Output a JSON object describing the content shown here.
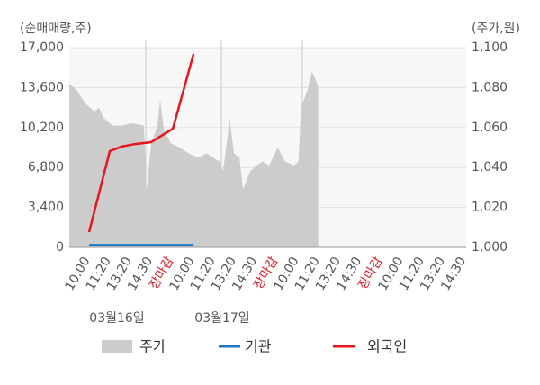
{
  "chart_data": {
    "type": "line",
    "y_axis_label": "(순매매량,주)",
    "y2_axis_label": "(주가,원)",
    "categories": [
      "10:00",
      "11:20",
      "13:20",
      "14:30",
      "장마감",
      "10:00",
      "11:20",
      "13:20",
      "14:30",
      "장마감",
      "10:00",
      "11:20",
      "13:20",
      "14:30",
      "장마감",
      "10:00",
      "11:20",
      "13:20",
      "14:30"
    ],
    "xlim": [
      -0.5,
      18.5
    ],
    "date_labels": [
      "03월16일",
      "03월17일"
    ],
    "ylim": [
      0,
      17000
    ],
    "yticks": [
      0,
      {
        "value": 3400,
        "label": "3,400"
      },
      {
        "value": 6800,
        "label": "6,800"
      },
      {
        "value": 10200,
        "label": "10,200"
      },
      {
        "value": 13600,
        "label": "13,600"
      },
      {
        "value": 17000,
        "label": "17,000"
      }
    ],
    "y2lim": [
      1000,
      1100
    ],
    "y2ticks": [
      {
        "value": 1000,
        "label": "1,000"
      },
      {
        "value": 1020,
        "label": "1,020"
      },
      {
        "value": 1040,
        "label": "1,040"
      },
      {
        "value": 1060,
        "label": "1,060"
      },
      {
        "value": 1080,
        "label": "1,080"
      },
      {
        "value": 1100,
        "label": "1,100"
      }
    ],
    "grid": true,
    "series": [
      {
        "name": "주가",
        "color": "#cccccc",
        "axis": "y2",
        "kind": "area",
        "x": [
          -0.5,
          -0.16,
          0.28,
          0.71,
          0.92,
          1.14,
          1.57,
          2.0,
          2.43,
          2.65,
          3.07,
          3.2,
          3.42,
          3.72,
          3.85,
          4.03,
          4.37,
          4.8,
          5.23,
          5.66,
          6.09,
          6.52,
          6.73,
          6.86,
          7.04,
          7.17,
          7.39,
          7.65,
          7.82,
          8.16,
          8.46,
          8.76,
          9.06,
          9.48,
          9.83,
          10.26,
          10.47,
          10.6,
          10.91,
          11.12,
          11.34,
          11.42
        ],
        "values": [
          1082,
          1079,
          1072,
          1068,
          1070,
          1065,
          1061,
          1061,
          1062,
          1062,
          1061,
          1029,
          1052,
          1061,
          1074,
          1059,
          1052,
          1050,
          1047,
          1045,
          1047,
          1044,
          1043,
          1038,
          1052,
          1065,
          1047,
          1045,
          1029,
          1038,
          1041,
          1043,
          1041,
          1050,
          1043,
          1041,
          1043,
          1070,
          1079,
          1088,
          1083,
          1080
        ]
      },
      {
        "name": "기관",
        "color": "#1f77c8",
        "axis": "y",
        "x": [
          0.45,
          1.44,
          2.0,
          2.65,
          3.42,
          4.46,
          5.45
        ],
        "values": [
          200,
          200,
          200,
          200,
          200,
          200,
          200
        ]
      },
      {
        "name": "외국인",
        "color": "#e8141e",
        "axis": "y",
        "x": [
          0.45,
          1.44,
          2.0,
          2.65,
          3.42,
          4.46,
          5.45
        ],
        "values": [
          1300,
          8190,
          8580,
          8800,
          8960,
          10100,
          16460
        ]
      }
    ]
  }
}
